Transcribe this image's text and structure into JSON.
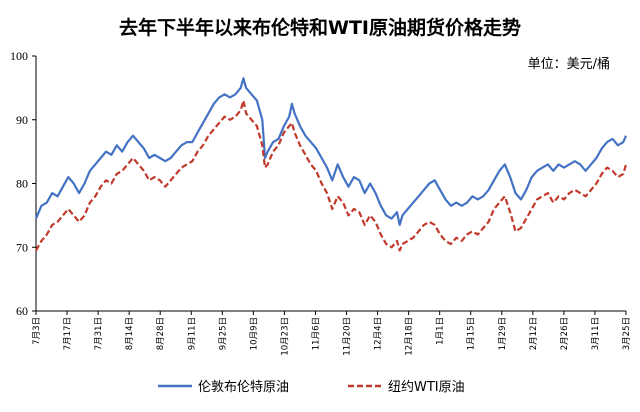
{
  "chart_data": {
    "type": "line",
    "title": "去年下半年以来布伦特和WTI原油期货价格走势",
    "unit_label": "单位：美元/桶",
    "xlabel": "",
    "ylabel": "",
    "ylim": [
      60,
      100
    ],
    "yticks": [
      60,
      70,
      80,
      90,
      100
    ],
    "grid": false,
    "legend_position": "bottom",
    "x_tick_labels": [
      "7月3日",
      "7月17日",
      "7月31日",
      "8月14日",
      "8月28日",
      "9月11日",
      "9月25日",
      "10月9日",
      "10月23日",
      "11月6日",
      "11月20日",
      "12月4日",
      "12月18日",
      "1月1日",
      "1月15日",
      "1月29日",
      "2月12日",
      "2月26日",
      "3月11日",
      "3月25日"
    ],
    "series": [
      {
        "name": "伦敦布伦特原油",
        "color": "#4472C4",
        "dash": "solid",
        "points": [
          [
            0,
            74.5
          ],
          [
            2,
            76.5
          ],
          [
            4,
            77
          ],
          [
            6,
            78.5
          ],
          [
            8,
            78
          ],
          [
            10,
            79.5
          ],
          [
            12,
            81
          ],
          [
            14,
            80
          ],
          [
            16,
            78.5
          ],
          [
            18,
            80
          ],
          [
            20,
            82
          ],
          [
            22,
            83
          ],
          [
            24,
            84
          ],
          [
            26,
            85
          ],
          [
            28,
            84.5
          ],
          [
            30,
            86
          ],
          [
            32,
            85
          ],
          [
            34,
            86.5
          ],
          [
            36,
            87.5
          ],
          [
            38,
            86.5
          ],
          [
            40,
            85.5
          ],
          [
            42,
            84
          ],
          [
            44,
            84.5
          ],
          [
            46,
            84
          ],
          [
            48,
            83.5
          ],
          [
            50,
            84
          ],
          [
            52,
            85
          ],
          [
            54,
            86
          ],
          [
            56,
            86.5
          ],
          [
            58,
            86.5
          ],
          [
            60,
            88
          ],
          [
            62,
            89.5
          ],
          [
            64,
            91
          ],
          [
            66,
            92.5
          ],
          [
            68,
            93.5
          ],
          [
            70,
            94
          ],
          [
            72,
            93.5
          ],
          [
            74,
            94
          ],
          [
            76,
            95
          ],
          [
            77,
            96.5
          ],
          [
            78,
            95
          ],
          [
            80,
            94
          ],
          [
            82,
            93
          ],
          [
            84,
            90
          ],
          [
            85,
            84
          ],
          [
            86,
            85
          ],
          [
            88,
            86.5
          ],
          [
            90,
            87
          ],
          [
            92,
            89
          ],
          [
            94,
            90.5
          ],
          [
            95,
            92.5
          ],
          [
            96,
            91
          ],
          [
            98,
            89
          ],
          [
            100,
            87.5
          ],
          [
            102,
            86.5
          ],
          [
            104,
            85.5
          ],
          [
            106,
            84
          ],
          [
            108,
            82.5
          ],
          [
            110,
            80.5
          ],
          [
            112,
            83
          ],
          [
            114,
            81
          ],
          [
            116,
            79.5
          ],
          [
            118,
            81
          ],
          [
            120,
            80.5
          ],
          [
            122,
            78.5
          ],
          [
            124,
            80
          ],
          [
            126,
            78.5
          ],
          [
            128,
            76.5
          ],
          [
            130,
            75
          ],
          [
            132,
            74.5
          ],
          [
            134,
            75.5
          ],
          [
            135,
            73.5
          ],
          [
            136,
            75
          ],
          [
            138,
            76
          ],
          [
            140,
            77
          ],
          [
            142,
            78
          ],
          [
            144,
            79
          ],
          [
            146,
            80
          ],
          [
            148,
            80.5
          ],
          [
            150,
            79
          ],
          [
            152,
            77.5
          ],
          [
            154,
            76.5
          ],
          [
            156,
            77
          ],
          [
            158,
            76.5
          ],
          [
            160,
            77
          ],
          [
            162,
            78
          ],
          [
            164,
            77.5
          ],
          [
            166,
            78
          ],
          [
            168,
            79
          ],
          [
            170,
            80.5
          ],
          [
            172,
            82
          ],
          [
            174,
            83
          ],
          [
            176,
            81
          ],
          [
            178,
            78.5
          ],
          [
            180,
            77.5
          ],
          [
            182,
            79
          ],
          [
            184,
            81
          ],
          [
            186,
            82
          ],
          [
            188,
            82.5
          ],
          [
            190,
            83
          ],
          [
            192,
            82
          ],
          [
            194,
            83
          ],
          [
            196,
            82.5
          ],
          [
            198,
            83
          ],
          [
            200,
            83.5
          ],
          [
            202,
            83
          ],
          [
            204,
            82
          ],
          [
            206,
            83
          ],
          [
            208,
            84
          ],
          [
            210,
            85.5
          ],
          [
            212,
            86.5
          ],
          [
            214,
            87
          ],
          [
            216,
            86
          ],
          [
            218,
            86.5
          ],
          [
            219,
            87.5
          ]
        ]
      },
      {
        "name": "纽约WTI原油",
        "color": "#C0392B",
        "dash": "dashed",
        "points": [
          [
            0,
            69.5
          ],
          [
            2,
            71
          ],
          [
            4,
            72
          ],
          [
            6,
            73.5
          ],
          [
            8,
            74
          ],
          [
            10,
            75
          ],
          [
            12,
            76
          ],
          [
            14,
            75
          ],
          [
            16,
            74
          ],
          [
            18,
            75
          ],
          [
            20,
            77
          ],
          [
            22,
            78
          ],
          [
            24,
            79.5
          ],
          [
            26,
            80.5
          ],
          [
            28,
            80
          ],
          [
            30,
            81.5
          ],
          [
            32,
            82
          ],
          [
            34,
            83
          ],
          [
            36,
            84
          ],
          [
            38,
            83
          ],
          [
            40,
            82
          ],
          [
            42,
            80.5
          ],
          [
            44,
            81
          ],
          [
            46,
            80.5
          ],
          [
            48,
            79.5
          ],
          [
            50,
            80.5
          ],
          [
            52,
            81.5
          ],
          [
            54,
            82.5
          ],
          [
            56,
            83
          ],
          [
            58,
            83.5
          ],
          [
            60,
            85
          ],
          [
            62,
            86
          ],
          [
            64,
            87.5
          ],
          [
            66,
            88.5
          ],
          [
            68,
            89.5
          ],
          [
            70,
            90.5
          ],
          [
            72,
            90
          ],
          [
            74,
            90.5
          ],
          [
            76,
            91.5
          ],
          [
            77,
            93
          ],
          [
            78,
            91
          ],
          [
            80,
            90
          ],
          [
            82,
            89
          ],
          [
            84,
            86
          ],
          [
            85,
            82.5
          ],
          [
            86,
            83
          ],
          [
            88,
            85
          ],
          [
            90,
            86
          ],
          [
            92,
            88
          ],
          [
            94,
            89
          ],
          [
            95,
            89.5
          ],
          [
            96,
            88
          ],
          [
            98,
            86
          ],
          [
            100,
            84.5
          ],
          [
            102,
            83
          ],
          [
            104,
            82
          ],
          [
            106,
            80
          ],
          [
            108,
            78.5
          ],
          [
            110,
            76
          ],
          [
            112,
            78
          ],
          [
            114,
            77
          ],
          [
            116,
            75
          ],
          [
            118,
            76
          ],
          [
            120,
            75.5
          ],
          [
            122,
            73.5
          ],
          [
            124,
            75
          ],
          [
            126,
            74
          ],
          [
            128,
            72
          ],
          [
            130,
            70.5
          ],
          [
            132,
            70
          ],
          [
            134,
            71
          ],
          [
            135,
            69.5
          ],
          [
            136,
            70.5
          ],
          [
            138,
            71
          ],
          [
            140,
            71.5
          ],
          [
            142,
            72.5
          ],
          [
            144,
            73.5
          ],
          [
            146,
            74
          ],
          [
            148,
            73.5
          ],
          [
            150,
            72
          ],
          [
            152,
            71
          ],
          [
            154,
            70.5
          ],
          [
            156,
            71.5
          ],
          [
            158,
            71
          ],
          [
            160,
            72
          ],
          [
            162,
            72.5
          ],
          [
            164,
            72
          ],
          [
            166,
            73
          ],
          [
            168,
            74
          ],
          [
            170,
            76
          ],
          [
            172,
            77
          ],
          [
            174,
            78
          ],
          [
            176,
            75.5
          ],
          [
            178,
            72.5
          ],
          [
            180,
            73
          ],
          [
            182,
            74.5
          ],
          [
            184,
            76
          ],
          [
            186,
            77.5
          ],
          [
            188,
            78
          ],
          [
            190,
            78.5
          ],
          [
            192,
            77
          ],
          [
            194,
            78
          ],
          [
            196,
            77.5
          ],
          [
            198,
            78.5
          ],
          [
            200,
            79
          ],
          [
            202,
            78.5
          ],
          [
            204,
            78
          ],
          [
            206,
            79
          ],
          [
            208,
            80
          ],
          [
            210,
            81.5
          ],
          [
            212,
            82.5
          ],
          [
            214,
            82
          ],
          [
            216,
            81
          ],
          [
            218,
            81.5
          ],
          [
            219,
            83
          ]
        ]
      }
    ]
  }
}
